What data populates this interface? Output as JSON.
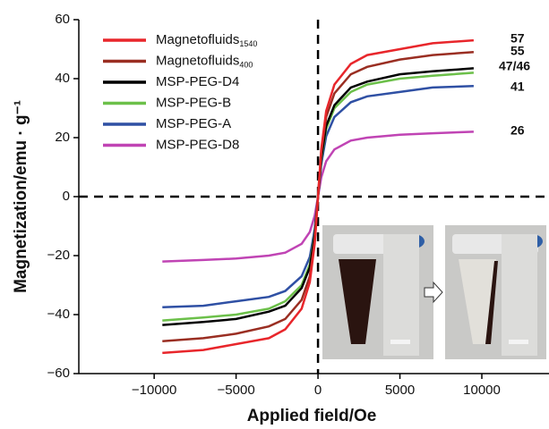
{
  "chart_data": {
    "type": "line",
    "xlabel": "Applied field/Oe",
    "ylabel": "Magnetization/emu · g⁻¹",
    "xlim": [
      -14600,
      14100
    ],
    "ylim": [
      -60,
      60
    ],
    "xticks": [
      {
        "value": -10000,
        "label": "−10000"
      },
      {
        "value": -5000,
        "label": "−5000"
      },
      0,
      5000,
      10000
    ],
    "yticks": [
      {
        "value": -60,
        "label": "−60"
      },
      {
        "value": -40,
        "label": "−40"
      },
      {
        "value": -20,
        "label": "−20"
      },
      0,
      20,
      40,
      60
    ],
    "x": [
      -9500,
      -7000,
      -5000,
      -3000,
      -2000,
      -1000,
      -500,
      -200,
      0,
      200,
      500,
      1000,
      2000,
      3000,
      5000,
      7000,
      9500
    ],
    "series": [
      {
        "name": "Magnetofluids",
        "subscript": "1540",
        "color": "#e8262b",
        "values": [
          -53,
          -52,
          -50,
          -48,
          -45,
          -38,
          -29,
          -16,
          0,
          16,
          29,
          38,
          45,
          48,
          50,
          52,
          53
        ]
      },
      {
        "name": "Magnetofluids",
        "subscript": "400",
        "color": "#9a2e22",
        "values": [
          -49,
          -48,
          -46.5,
          -44,
          -41.5,
          -35,
          -27,
          -15,
          0,
          15,
          27,
          35,
          41.5,
          44,
          46.5,
          48,
          49
        ]
      },
      {
        "name": "MSP-PEG-D4",
        "color": "#000000",
        "values": [
          -43.5,
          -42.5,
          -41.5,
          -39,
          -37,
          -31,
          -24,
          -13,
          0,
          13,
          24,
          31,
          37,
          39,
          41.5,
          42.5,
          43.5
        ]
      },
      {
        "name": "MSP-PEG-B",
        "color": "#6cc04a",
        "values": [
          -42,
          -41,
          -40,
          -38,
          -35.5,
          -30,
          -23,
          -12.5,
          0,
          12.5,
          23,
          30,
          35.5,
          38,
          40,
          41,
          42
        ]
      },
      {
        "name": "MSP-PEG-A",
        "color": "#2f50a4",
        "values": [
          -37.5,
          -37,
          -35.5,
          -34,
          -32,
          -27,
          -20.5,
          -11,
          0,
          11,
          20.5,
          27,
          32,
          34,
          35.5,
          37,
          37.5
        ]
      },
      {
        "name": "MSP-PEG-D8",
        "color": "#c044b4",
        "values": [
          -22,
          -21.5,
          -21,
          -20,
          -19,
          -16,
          -12,
          -6.5,
          0,
          6.5,
          12,
          16,
          19,
          20,
          21,
          21.5,
          22
        ]
      }
    ],
    "annotations": [
      "57",
      "55",
      "47/46",
      "41",
      "26"
    ],
    "legend": "upper left"
  }
}
